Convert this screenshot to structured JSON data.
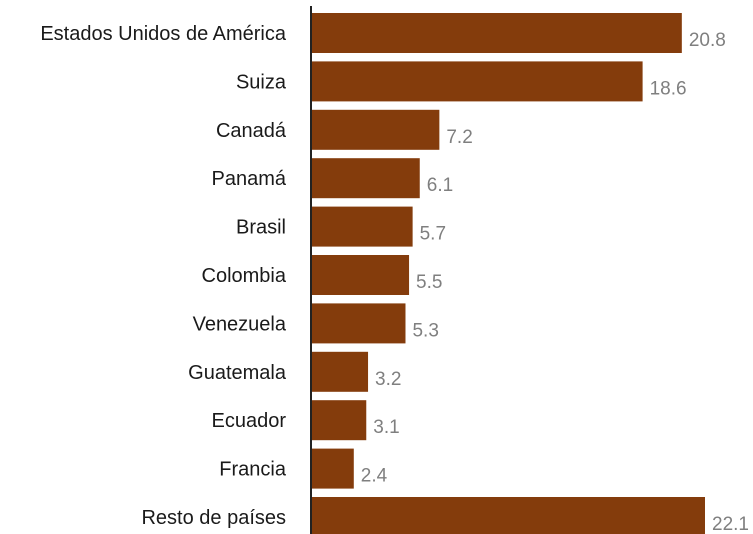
{
  "chart_data": {
    "type": "bar",
    "orientation": "horizontal",
    "title": "",
    "xlabel": "",
    "ylabel": "",
    "categories": [
      "Estados Unidos de América",
      "Suiza",
      "Canadá",
      "Panamá",
      "Brasil",
      "Colombia",
      "Venezuela",
      "Guatemala",
      "Ecuador",
      "Francia",
      "Resto de países"
    ],
    "values": [
      20.8,
      18.6,
      7.2,
      6.1,
      5.7,
      5.5,
      5.3,
      3.2,
      3.1,
      2.4,
      22.1
    ],
    "value_labels": [
      "20.8",
      "18.6",
      "7.2",
      "6.1",
      "5.7",
      "5.5",
      "5.3",
      "3.2",
      "3.1",
      "2.4",
      "22.1"
    ],
    "xlim": [
      0,
      22.1
    ],
    "grid": false,
    "legend": "none",
    "bar_color": "#843c0c",
    "value_label_color": "#7f7f7f",
    "category_label_color": "#1a1a1a",
    "axis_color": "#222222"
  }
}
